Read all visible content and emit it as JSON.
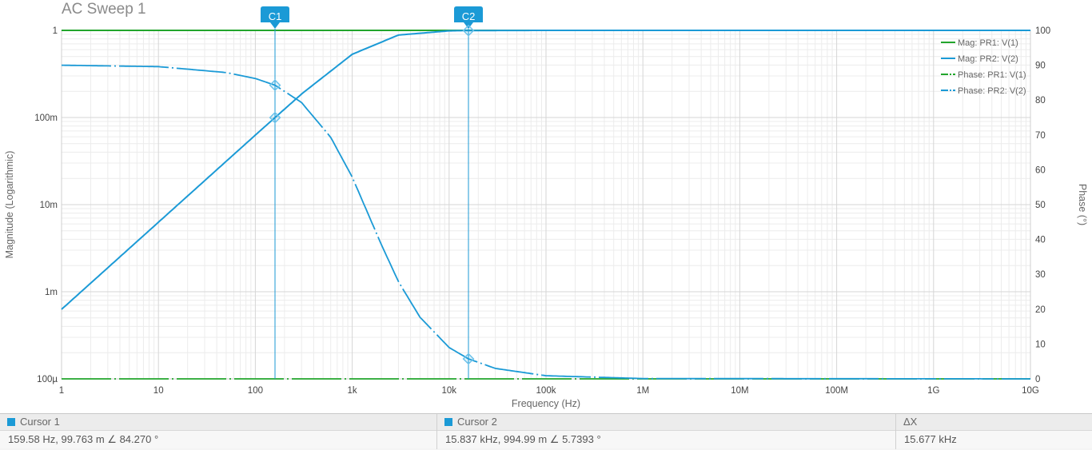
{
  "title": "AC Sweep 1",
  "chart_data": {
    "type": "line",
    "xlabel": "Frequency (Hz)",
    "ylabel_left": "Magnitude (Logarithmic)",
    "ylabel_right": "Phase (°)",
    "x_scale": "log",
    "y_left_scale": "log",
    "xlim": [
      1,
      10000000000
    ],
    "ylim_left": [
      0.0001,
      1
    ],
    "ylim_right": [
      0,
      100
    ],
    "x_ticks": [
      {
        "value": 1,
        "label": "1"
      },
      {
        "value": 10,
        "label": "10"
      },
      {
        "value": 100,
        "label": "100"
      },
      {
        "value": 1000,
        "label": "1k"
      },
      {
        "value": 10000,
        "label": "10k"
      },
      {
        "value": 100000,
        "label": "100k"
      },
      {
        "value": 1000000,
        "label": "1M"
      },
      {
        "value": 10000000,
        "label": "10M"
      },
      {
        "value": 100000000,
        "label": "100M"
      },
      {
        "value": 1000000000,
        "label": "1G"
      },
      {
        "value": 10000000000,
        "label": "10G"
      }
    ],
    "y_left_ticks": [
      {
        "value": 1,
        "label": "1"
      },
      {
        "value": 0.1,
        "label": "100m"
      },
      {
        "value": 0.01,
        "label": "10m"
      },
      {
        "value": 0.001,
        "label": "1m"
      },
      {
        "value": 0.0001,
        "label": "100µ"
      }
    ],
    "y_right_ticks": [
      {
        "value": 100,
        "label": "100"
      },
      {
        "value": 90,
        "label": "90"
      },
      {
        "value": 80,
        "label": "80"
      },
      {
        "value": 70,
        "label": "70"
      },
      {
        "value": 60,
        "label": "60"
      },
      {
        "value": 50,
        "label": "50"
      },
      {
        "value": 40,
        "label": "40"
      },
      {
        "value": 30,
        "label": "30"
      },
      {
        "value": 20,
        "label": "20"
      },
      {
        "value": 10,
        "label": "10"
      },
      {
        "value": 0,
        "label": "0"
      }
    ],
    "grid": true,
    "legend_position": "top-right",
    "series": [
      {
        "name": "Mag: PR1: V(1)",
        "axis": "left",
        "color": "#22a52c",
        "style": "solid",
        "x": [
          1,
          10000000000
        ],
        "y": [
          1,
          1
        ]
      },
      {
        "name": "Mag: PR2: V(2)",
        "axis": "left",
        "color": "#1b9ad6",
        "style": "solid",
        "x": [
          1,
          10,
          100,
          159.58,
          300,
          1000,
          3000,
          10000,
          15837,
          100000,
          10000000000
        ],
        "y": [
          0.000628,
          0.00628,
          0.0628,
          0.09976,
          0.186,
          0.532,
          0.884,
          0.9876,
          0.99499,
          1,
          1
        ]
      },
      {
        "name": "Phase: PR1: V(1)",
        "axis": "right",
        "color": "#22a52c",
        "style": "dash-dot",
        "x": [
          1,
          10000000000
        ],
        "y": [
          0,
          0
        ]
      },
      {
        "name": "Phase: PR2: V(2)",
        "axis": "right",
        "color": "#1b9ad6",
        "style": "dash-dot",
        "x": [
          1,
          10,
          50,
          100,
          159.58,
          300,
          600,
          1000,
          2000,
          3000,
          5000,
          10000,
          15837,
          30000,
          100000,
          1000000,
          10000000000
        ],
        "y": [
          90,
          89.6,
          87.9,
          86.2,
          84.27,
          79.3,
          69.3,
          57.9,
          38.5,
          27.9,
          17.7,
          9.0,
          5.74,
          3.0,
          0.9,
          0.09,
          0
        ]
      }
    ],
    "cursors": [
      {
        "label": "C1",
        "x": 159.58,
        "mag": 0.09976,
        "phase": 84.27
      },
      {
        "label": "C2",
        "x": 15837,
        "mag": 0.99499,
        "phase": 5.7393
      }
    ]
  },
  "readout": {
    "cursor1": {
      "label": "Cursor 1",
      "value": "159.58 Hz, 99.763 m ∠ 84.270 °",
      "color": "#1b9ad6"
    },
    "cursor2": {
      "label": "Cursor 2",
      "value": "15.837 kHz, 994.99 m ∠ 5.7393 °",
      "color": "#1b9ad6"
    },
    "delta": {
      "label": "ΔX",
      "value": "15.677 kHz"
    }
  }
}
